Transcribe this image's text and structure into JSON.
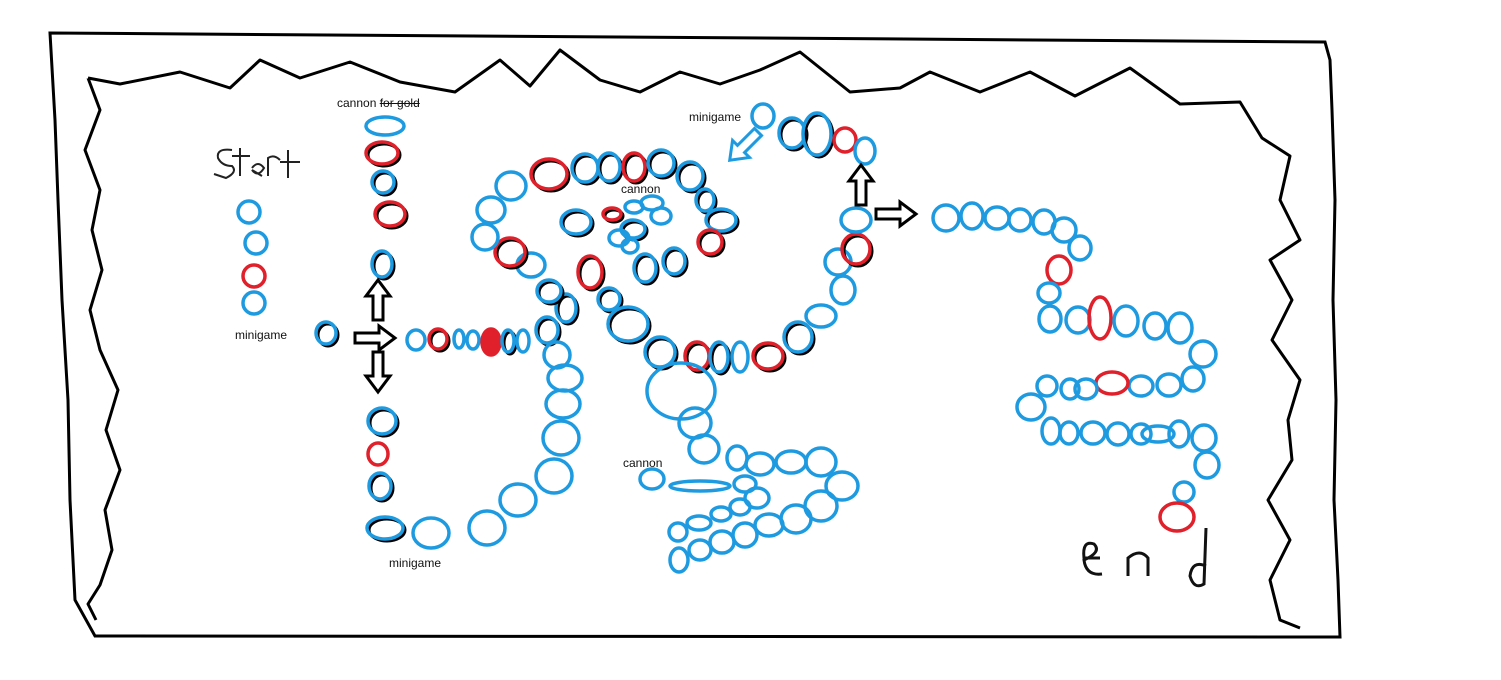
{
  "map": {
    "start_label": "start",
    "end_label": "end",
    "labels": {
      "cannon_for_gold": "cannon",
      "cannon_for_gold_strike": "for gold",
      "minigame_left": "minigame",
      "minigame_bottom": "minigame",
      "minigame_top": "minigame",
      "cannon_center": "cannon",
      "cannon_lower": "cannon"
    }
  },
  "colors": {
    "outline": "#000000",
    "space_blue": "#1e9be0",
    "space_red": "#e0202a",
    "shadow": "#000000",
    "background": "#ffffff"
  },
  "icons": {
    "arrow": "hollow-arrow-icon",
    "space": "ellipse-space-icon"
  }
}
